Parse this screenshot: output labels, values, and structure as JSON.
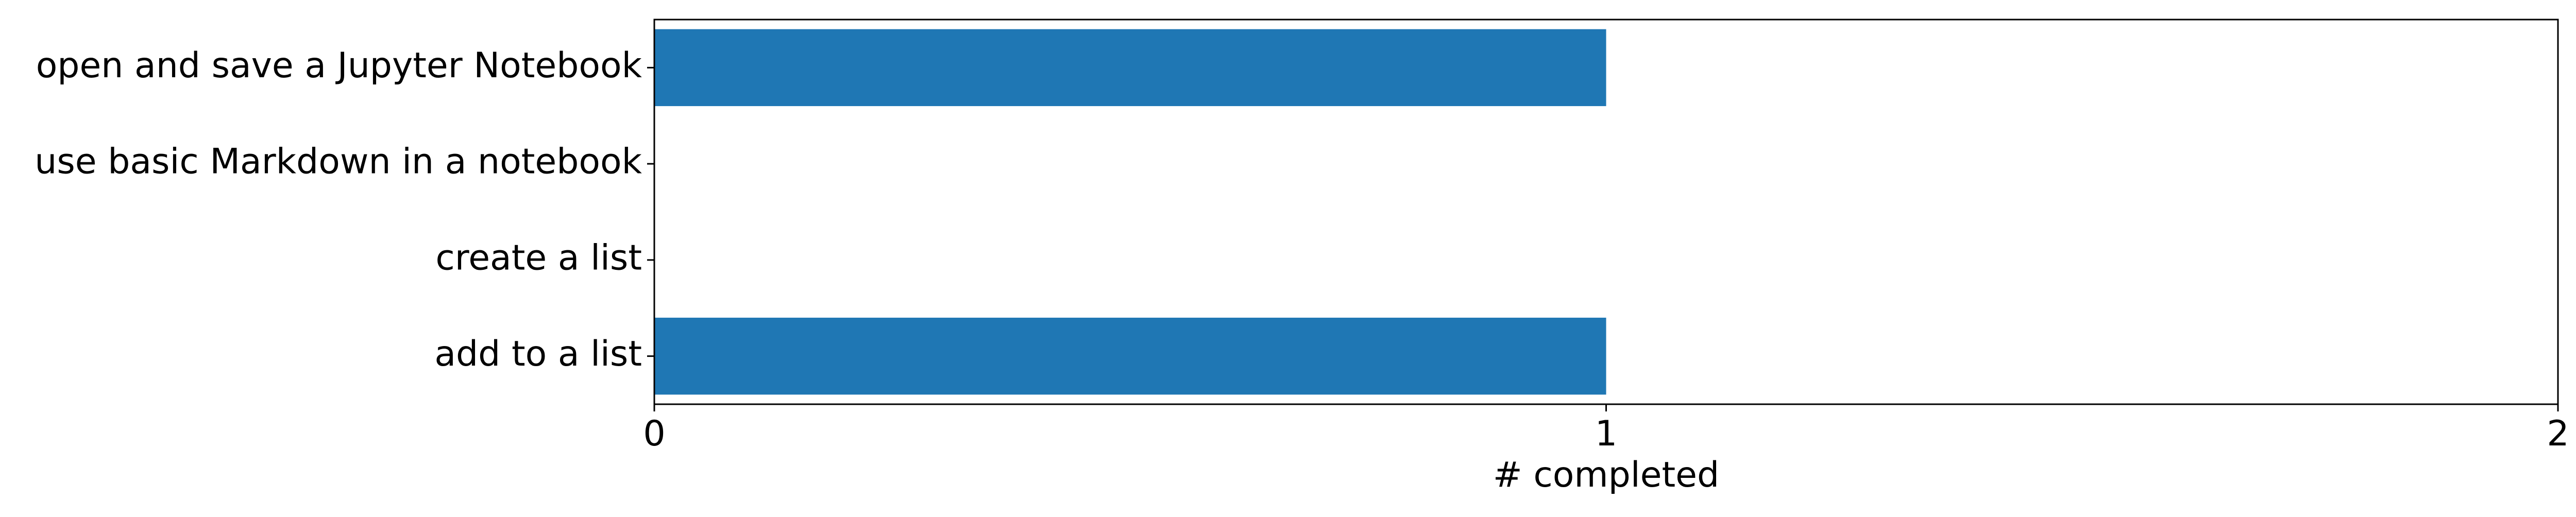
{
  "chart_data": {
    "type": "bar",
    "orientation": "horizontal",
    "categories": [
      "open and save a Jupyter Notebook",
      "use basic Markdown in a notebook",
      "create a list",
      "add to a list"
    ],
    "values": [
      1,
      0,
      0,
      1
    ],
    "xlabel": "# completed",
    "ylabel": "",
    "title": "",
    "xlim": [
      0,
      2
    ],
    "xticks": [
      0,
      1,
      2
    ],
    "grid": false,
    "legend": "none",
    "colors": {
      "bar": "#1f77b4",
      "axis": "#000000",
      "background": "#ffffff"
    }
  }
}
